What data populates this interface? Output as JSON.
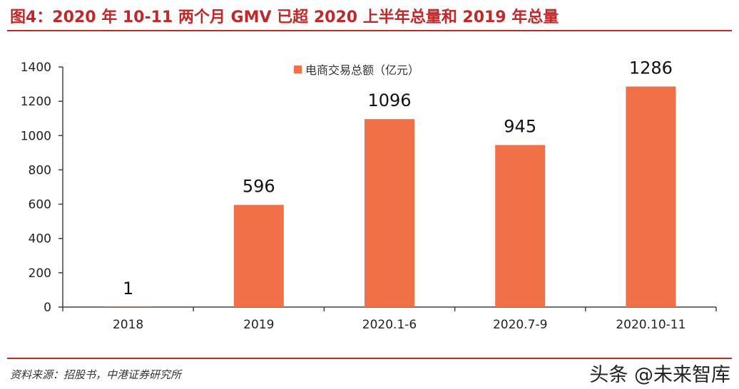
{
  "title": "图4：2020 年 10-11 两个月 GMV 已超 2020 上半年总量和 2019 年总量",
  "source": "资料来源：招股书，中港证券研究所",
  "watermark": "头条 @未来智库",
  "colors": {
    "bar": "#f07048",
    "accent": "#c0282a",
    "axis": "#404040"
  },
  "chart_data": {
    "type": "bar",
    "title": "图4：2020 年 10-11 两个月 GMV 已超 2020 上半年总量和 2019 年总量",
    "categories": [
      "2018",
      "2019",
      "2020.1-6",
      "2020.7-9",
      "2020.10-11"
    ],
    "series": [
      {
        "name": "电商交易总额（亿元）",
        "values": [
          1,
          596,
          1096,
          945,
          1286
        ]
      }
    ],
    "data_labels": [
      "1",
      "596",
      "1096",
      "945",
      "1286"
    ],
    "yticks": [
      "0",
      "200",
      "400",
      "600",
      "800",
      "1000",
      "1200",
      "1400"
    ],
    "ylim": [
      0,
      1400
    ],
    "xlabel": "",
    "ylabel": "",
    "grid": false,
    "legend": "top-center"
  }
}
